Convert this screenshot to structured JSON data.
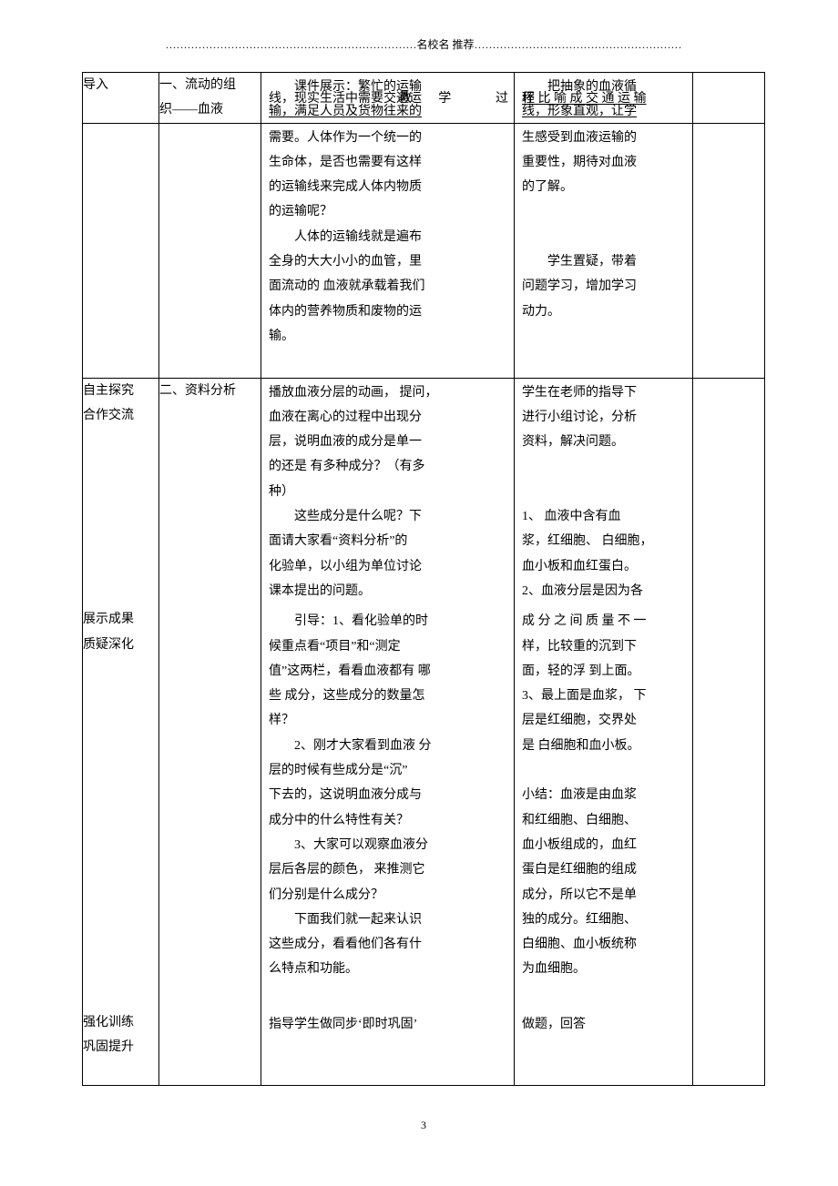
{
  "header": {
    "left_dots": "……………………………………………………………",
    "label": "名校名 推荐",
    "right_dots": "…………………………………………………"
  },
  "table": {
    "r1": {
      "c1": "导入",
      "c2_a": "一、流动的组",
      "c2_b": "织——血液",
      "c3_ovl_top": "课件展示：繁忙的运输",
      "c3_ovl_mid_a": "线，现实生活中需要交通运",
      "c3_ovl_mid_b": "教",
      "c3_ovl_mid_c": "学",
      "c3_ovl_mid_d": "过",
      "c3_ovl_bot": "输，满足人员及货物往来的",
      "c4_ovl_top": "把抽象的血液循",
      "c4_ovl_mid": "环 比 喻 成 交 通 运 输",
      "c4_ovl_mid2": "程",
      "c4_ovl_bot": "线，形象直观，让学"
    },
    "r2": {
      "c3": [
        "需要。人体作为一个统一的",
        "生命体，是否也需要有这样",
        "的运输线来完成人体内物质",
        "的运输呢？",
        "人体的运输线就是遍布",
        "全身的大大小小的血管，里",
        "面流动的 血液就承载着我们",
        "体内的营养物质和废物的运",
        "输。"
      ],
      "c4": [
        "生感受到血液运输的",
        "重要性，期待对血液",
        "的了解。",
        "",
        "",
        "学生置疑，带着",
        "问题学习，增加学习",
        "动力。"
      ]
    },
    "r3": {
      "c1_a": "自主探究",
      "c1_b": "合作交流",
      "c2": "二、资料分析",
      "c3": [
        "播放血液分层的动画， 提问，",
        "血液在离心的过程中出现分",
        "层，说明血液的成分是单一",
        "的还是 有多种成分？（有多",
        "种）",
        "这些成分是什么呢？下",
        "面请大家看“资料分析”的",
        "化验单，以小组为单位讨论",
        "课本提出的问题。"
      ],
      "c4": [
        "学生在老师的指导下",
        "进行小组讨论，分析",
        "资料，解决问题。",
        "",
        "",
        "1、 血液中含有血",
        "浆，红细胞、 白细胞，",
        "血小板和血红蛋白。",
        "2、血液分层是因为各"
      ]
    },
    "r4": {
      "c1_a": "展示成果",
      "c1_b": "质疑深化",
      "c3": [
        "引导：1、看化验单的时",
        "候重点看“项目”和“测定",
        "值”这两栏，看看血液都有 哪",
        "些 成分，这些成分的数量怎",
        "样？",
        "2、刚才大家看到血液 分",
        "层的时候有些成分是“沉”",
        "下去的，这说明血液分成与",
        "成分中的什么特性有关？",
        "3、大家可以观察血液分",
        "层后各层的颜色， 来推测它",
        "们分别是什么成分？",
        "下面我们就一起来认识",
        "这些成分，看看他们各有什",
        "么特点和功能。"
      ],
      "c4": [
        "成 分 之 间 质 量 不 一",
        "样，比较重的沉到下",
        "面，轻的浮 到上面。",
        "3、最上面是血浆， 下",
        "层是红细胞，交界处",
        "是 白细胞和血小板。",
        "",
        "小结：血液是由血浆",
        "和红细胞、白细胞、",
        "血小板组成的，血红",
        "蛋白是红细胞的组成",
        "成分，所以它不是单",
        "独的成分。红细胞、",
        "白细胞、血小板统称",
        "为血细胞。"
      ]
    },
    "r5": {
      "c1_a": "强化训练",
      "c1_b": "巩固提升",
      "c3": "指导学生做同步‘即时巩固’",
      "c4": "做题，回答"
    }
  },
  "pagenum": "3"
}
